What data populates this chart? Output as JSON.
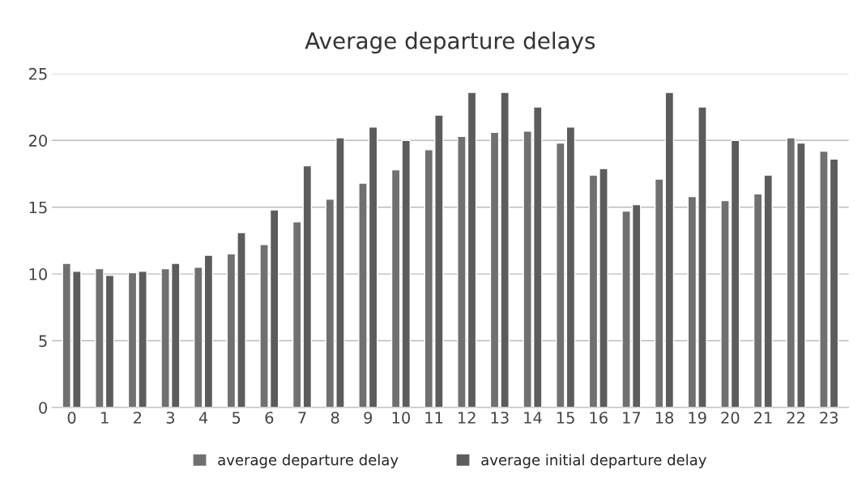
{
  "chart_data": {
    "type": "bar",
    "title": "Average departure delays",
    "categories": [
      "0",
      "1",
      "2",
      "3",
      "4",
      "5",
      "6",
      "7",
      "8",
      "9",
      "10",
      "11",
      "12",
      "13",
      "14",
      "15",
      "16",
      "17",
      "18",
      "19",
      "20",
      "21",
      "22",
      "23"
    ],
    "series": [
      {
        "name": "average departure delay",
        "color": "#707070",
        "values": [
          10.8,
          10.4,
          10.1,
          10.4,
          10.5,
          11.5,
          12.2,
          13.9,
          15.6,
          16.8,
          17.8,
          19.3,
          20.3,
          20.6,
          20.7,
          19.8,
          17.4,
          14.7,
          17.1,
          15.8,
          15.5,
          16.0,
          20.2,
          19.2
        ]
      },
      {
        "name": "average initial departure delay",
        "color": "#5c5c5c",
        "values": [
          10.2,
          9.9,
          10.2,
          10.8,
          11.4,
          13.1,
          14.8,
          18.1,
          20.2,
          21.0,
          20.0,
          21.9,
          23.6,
          23.6,
          22.5,
          21.0,
          17.9,
          15.2,
          23.6,
          22.5,
          20.0,
          17.4,
          19.8,
          18.6
        ]
      }
    ],
    "ylim": [
      0,
      25
    ],
    "yticks": [
      0,
      5,
      10,
      15,
      20,
      25
    ],
    "grid": "y",
    "legend": "bottom"
  }
}
